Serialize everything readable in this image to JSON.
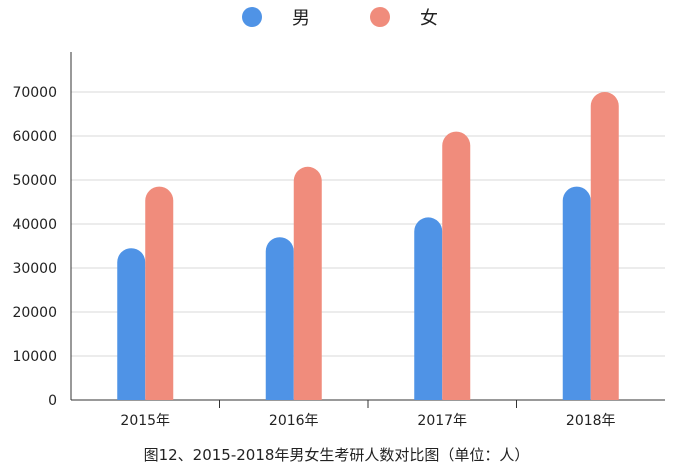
{
  "legend": [
    {
      "label": "男",
      "color": "#4f93e6"
    },
    {
      "label": "女",
      "color": "#f08c7c"
    }
  ],
  "caption": "图12、2015-2018年男女生考研人数对比图（单位：人）",
  "chart_data": {
    "type": "bar",
    "categories": [
      "2015年",
      "2016年",
      "2017年",
      "2018年"
    ],
    "series": [
      {
        "name": "男",
        "values": [
          34500,
          37000,
          41500,
          48500
        ],
        "color": "#4f93e6"
      },
      {
        "name": "女",
        "values": [
          48500,
          53000,
          61000,
          70000
        ],
        "color": "#f08c7c"
      }
    ],
    "yticks": [
      "0",
      "10000",
      "20000",
      "30000",
      "40000",
      "50000",
      "60000",
      "70000"
    ],
    "ylim": [
      0,
      70000
    ],
    "grid": true,
    "legend_position": "top"
  }
}
